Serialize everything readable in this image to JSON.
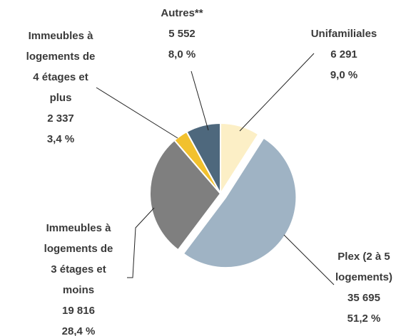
{
  "chart_data": {
    "type": "pie",
    "categories": [
      "Unifamiliales",
      "Plex (2 à 5\nlogements)",
      "Immeubles à\nlogements de\n3 étages et\nmoins",
      "Immeubles à\nlogements de\n4 étages et\nplus",
      "Autres**"
    ],
    "values": [
      6291,
      35695,
      19816,
      2337,
      5552
    ],
    "value_labels": [
      "6 291",
      "35 695",
      "19 816",
      "2 337",
      "5 552"
    ],
    "shares": [
      9.0,
      51.2,
      28.4,
      3.4,
      8.0
    ],
    "share_labels": [
      "9,0 %",
      "51,2 %",
      "28,4 %",
      "3,4 %",
      "8,0 %"
    ],
    "colors": [
      "#fcefc6",
      "#9fb3c4",
      "#7f7f7f",
      "#f2c12e",
      "#4e687d"
    ],
    "exploded": [
      false,
      true,
      false,
      false,
      false
    ]
  }
}
